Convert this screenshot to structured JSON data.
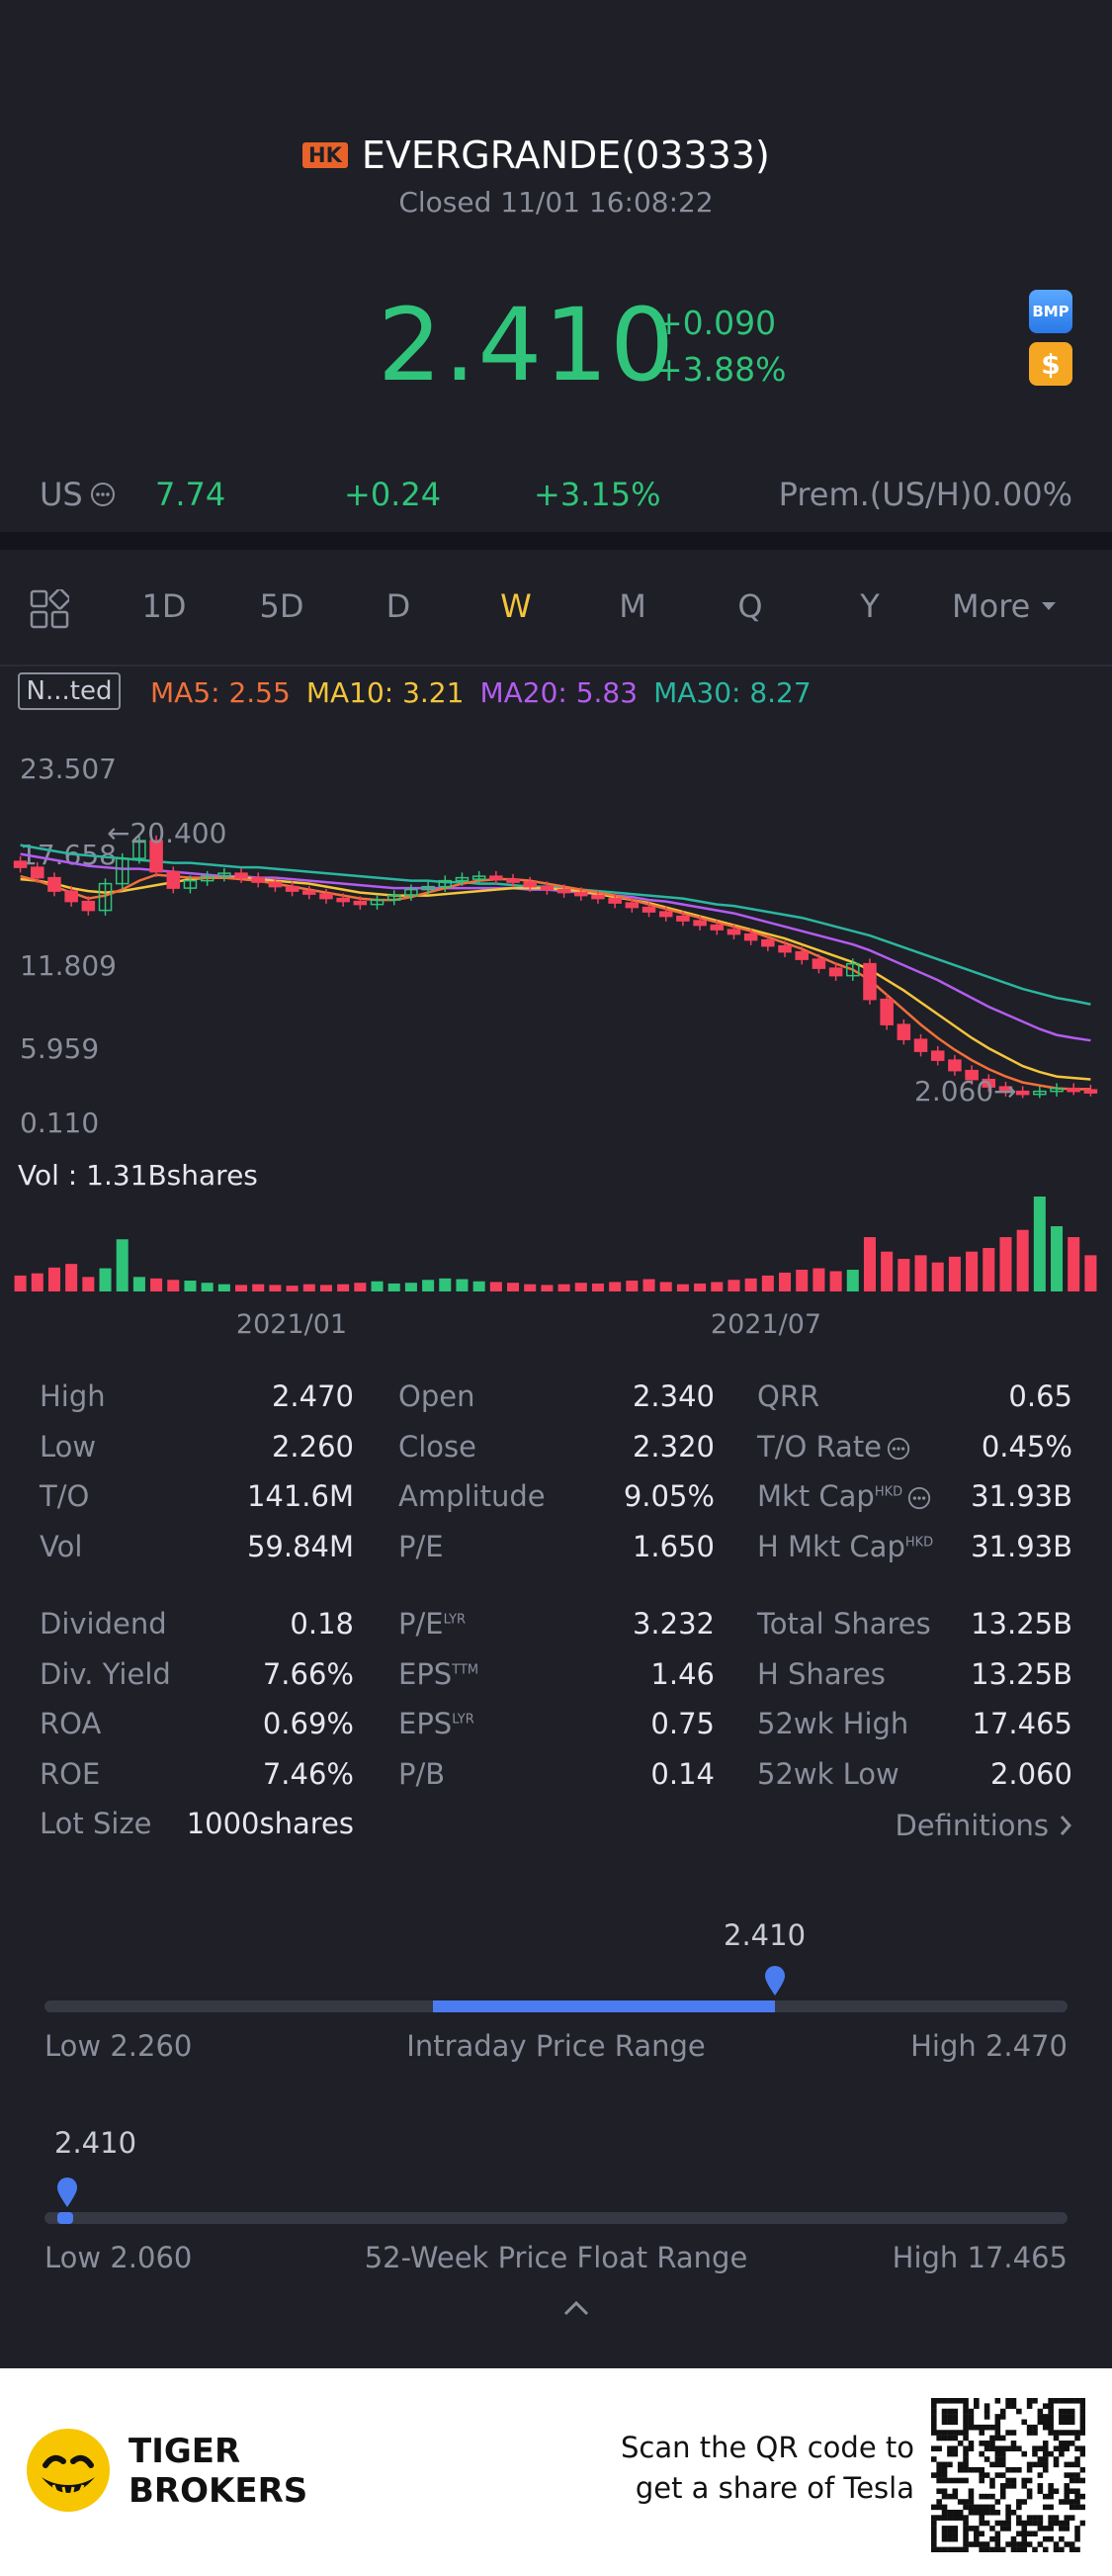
{
  "header": {
    "market_badge": "HK",
    "title": "EVERGRANDE(03333)",
    "status": "Closed 11/01 16:08:22",
    "price": "2.410",
    "change": "+0.090",
    "change_pct": "+3.88%",
    "icon_bmp": "BMP",
    "icon_dollar": "$"
  },
  "us_row": {
    "label": "US",
    "price": "7.74",
    "change": "+0.24",
    "change_pct": "+3.15%",
    "premium": "Prem.(US/H)0.00%"
  },
  "timeframes": [
    "1D",
    "5D",
    "D",
    "W",
    "M",
    "Q",
    "Y"
  ],
  "timeframe_active": "W",
  "timeframe_more": "More",
  "chart_header": {
    "adjust_label": "N...ted",
    "ma5": "MA5: 2.55",
    "ma10": "MA10: 3.21",
    "ma20": "MA20: 5.83",
    "ma30": "MA30: 8.27"
  },
  "chart_data": {
    "type": "candlestick",
    "y_ticks": [
      "23.507",
      "17.658",
      "11.809",
      "5.959",
      "0.110"
    ],
    "x_labels": [
      "2021/01",
      "2021/07"
    ],
    "max_label": "20.400",
    "min_label": "2.060",
    "volume_label": "Vol  : 1.31Bshares",
    "closes": [
      17.5,
      16.8,
      15.9,
      15.2,
      14.6,
      16.4,
      18.1,
      19.3,
      17.2,
      16.1,
      16.6,
      16.9,
      17.1,
      16.8,
      16.5,
      16.2,
      15.9,
      15.7,
      15.4,
      15.2,
      15.0,
      15.3,
      15.6,
      16.0,
      16.2,
      16.6,
      16.8,
      16.9,
      16.7,
      16.5,
      16.2,
      16.0,
      15.8,
      15.6,
      15.4,
      15.1,
      14.8,
      14.5,
      14.2,
      13.9,
      13.6,
      13.3,
      13.0,
      12.6,
      12.2,
      11.8,
      11.3,
      10.7,
      10.2,
      11.0,
      8.6,
      6.9,
      5.9,
      5.1,
      4.5,
      3.8,
      3.2,
      2.7,
      2.4,
      2.3,
      2.4,
      2.6,
      2.5,
      2.41
    ],
    "volumes": [
      0.22,
      0.25,
      0.33,
      0.38,
      0.2,
      0.32,
      0.72,
      0.2,
      0.18,
      0.16,
      0.15,
      0.12,
      0.1,
      0.09,
      0.1,
      0.09,
      0.08,
      0.1,
      0.09,
      0.1,
      0.12,
      0.14,
      0.11,
      0.12,
      0.16,
      0.18,
      0.17,
      0.14,
      0.13,
      0.12,
      0.1,
      0.09,
      0.1,
      0.12,
      0.11,
      0.13,
      0.15,
      0.17,
      0.13,
      0.1,
      0.11,
      0.13,
      0.16,
      0.18,
      0.22,
      0.26,
      0.3,
      0.32,
      0.28,
      0.3,
      0.75,
      0.55,
      0.45,
      0.5,
      0.4,
      0.48,
      0.55,
      0.6,
      0.75,
      0.85,
      1.31,
      0.9,
      0.75,
      0.5
    ],
    "ma5": [
      16.9,
      16.6,
      16.2,
      15.8,
      15.4,
      15.6,
      16.0,
      16.6,
      17.0,
      16.9,
      16.8,
      16.8,
      16.8,
      16.7,
      16.6,
      16.4,
      16.2,
      16.0,
      15.8,
      15.6,
      15.4,
      15.3,
      15.3,
      15.5,
      15.8,
      16.1,
      16.4,
      16.6,
      16.7,
      16.7,
      16.6,
      16.4,
      16.2,
      16.0,
      15.8,
      15.6,
      15.3,
      15.0,
      14.7,
      14.4,
      14.1,
      13.8,
      13.5,
      13.2,
      12.8,
      12.4,
      12.0,
      11.5,
      11.0,
      10.6,
      9.9,
      8.9,
      7.9,
      6.9,
      6.0,
      5.2,
      4.5,
      3.9,
      3.4,
      3.0,
      2.8,
      2.6,
      2.55,
      2.55
    ],
    "ma10": [
      16.7,
      16.6,
      16.4,
      16.1,
      15.9,
      15.8,
      15.9,
      16.1,
      16.3,
      16.5,
      16.7,
      16.8,
      16.8,
      16.8,
      16.7,
      16.6,
      16.5,
      16.4,
      16.2,
      16.0,
      15.8,
      15.7,
      15.6,
      15.6,
      15.6,
      15.7,
      15.8,
      15.9,
      16.0,
      16.1,
      16.1,
      16.1,
      16.0,
      15.9,
      15.7,
      15.5,
      15.3,
      15.1,
      14.8,
      14.5,
      14.2,
      13.9,
      13.6,
      13.3,
      13.0,
      12.7,
      12.3,
      11.9,
      11.5,
      11.1,
      10.6,
      9.9,
      9.2,
      8.4,
      7.6,
      6.8,
      6.0,
      5.3,
      4.7,
      4.1,
      3.7,
      3.4,
      3.3,
      3.21
    ],
    "ma20": [
      18.4,
      18.2,
      18.0,
      17.8,
      17.6,
      17.5,
      17.4,
      17.4,
      17.3,
      17.2,
      17.1,
      17.0,
      16.9,
      16.9,
      16.8,
      16.8,
      16.7,
      16.6,
      16.5,
      16.4,
      16.3,
      16.2,
      16.1,
      16.1,
      16.1,
      16.1,
      16.1,
      16.1,
      16.1,
      16.1,
      16.0,
      16.0,
      15.9,
      15.8,
      15.7,
      15.6,
      15.5,
      15.3,
      15.2,
      15.0,
      14.8,
      14.6,
      14.4,
      14.1,
      13.8,
      13.5,
      13.2,
      12.9,
      12.6,
      12.3,
      11.9,
      11.4,
      10.9,
      10.4,
      9.9,
      9.3,
      8.7,
      8.1,
      7.6,
      7.1,
      6.6,
      6.2,
      6.0,
      5.83
    ],
    "ma30": [
      19.0,
      18.8,
      18.6,
      18.4,
      18.3,
      18.2,
      18.1,
      18.0,
      17.9,
      17.8,
      17.8,
      17.7,
      17.6,
      17.5,
      17.5,
      17.4,
      17.3,
      17.2,
      17.1,
      17.0,
      16.9,
      16.8,
      16.7,
      16.6,
      16.6,
      16.5,
      16.5,
      16.4,
      16.4,
      16.3,
      16.2,
      16.2,
      16.1,
      16.0,
      15.9,
      15.8,
      15.7,
      15.6,
      15.5,
      15.4,
      15.2,
      15.0,
      14.9,
      14.7,
      14.5,
      14.3,
      14.1,
      13.8,
      13.5,
      13.2,
      12.9,
      12.5,
      12.1,
      11.7,
      11.3,
      10.9,
      10.5,
      10.1,
      9.7,
      9.3,
      9.0,
      8.7,
      8.5,
      8.27
    ]
  },
  "stats": {
    "col1": [
      {
        "label": "High",
        "value": "2.470"
      },
      {
        "label": "Low",
        "value": "2.260"
      },
      {
        "label": "T/O",
        "value": "141.6M"
      },
      {
        "label": "Vol",
        "value": "59.84M"
      },
      {
        "label": "Dividend",
        "value": "0.18"
      },
      {
        "label": "Div. Yield",
        "value": "7.66%"
      },
      {
        "label": "ROA",
        "value": "0.69%"
      },
      {
        "label": "ROE",
        "value": "7.46%"
      },
      {
        "label": "Lot Size",
        "value": "1000shares"
      }
    ],
    "col2": [
      {
        "label": "Open",
        "value": "2.340"
      },
      {
        "label": "Close",
        "value": "2.320"
      },
      {
        "label": "Amplitude",
        "value": "9.05%"
      },
      {
        "label": "P/E",
        "value": "1.650"
      },
      {
        "label": "P/E",
        "sup": "LYR",
        "value": "3.232"
      },
      {
        "label": "EPS",
        "sup": "TTM",
        "value": "1.46"
      },
      {
        "label": "EPS",
        "sup": "LYR",
        "value": "0.75"
      },
      {
        "label": "P/B",
        "value": "0.14"
      }
    ],
    "col3": [
      {
        "label": "QRR",
        "value": "0.65"
      },
      {
        "label": "T/O Rate",
        "value": "0.45%"
      },
      {
        "label": "Mkt Cap",
        "sup": "HKD",
        "value": "31.93B"
      },
      {
        "label": "H Mkt Cap",
        "sup": "HKD",
        "value": "31.93B"
      },
      {
        "label": "Total Shares",
        "value": "13.25B"
      },
      {
        "label": "H Shares",
        "value": "13.25B"
      },
      {
        "label": "52wk High",
        "value": "17.465"
      },
      {
        "label": "52wk Low",
        "value": "2.060"
      }
    ],
    "definitions": "Definitions"
  },
  "intraday": {
    "current": "2.410",
    "low": "Low 2.260",
    "title": "Intraday Price Range",
    "high": "High 2.470",
    "fill_start": 0.38,
    "fill_end": 0.714
  },
  "week52": {
    "current": "2.410",
    "low": "Low 2.060",
    "title": "52-Week Price Float Range",
    "high": "High 17.465",
    "position": 0.023
  },
  "footer": {
    "brand_line1": "TIGER",
    "brand_line2": "BROKERS",
    "scan_line1": "Scan the QR code to",
    "scan_line2": "get a share of Tesla"
  }
}
